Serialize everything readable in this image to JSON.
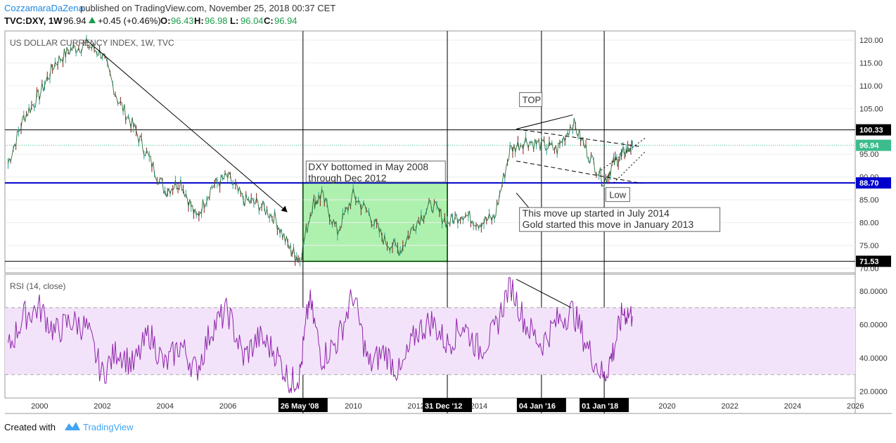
{
  "header": {
    "author": "CozzamaraDaZena",
    "published_text": " published on TradingView.com, November 25, 2018 00:37 CET",
    "symbol": "TVC:DXY, 1W",
    "last": "96.94",
    "change": "+0.45 (+0.46%)",
    "o_label": "O:",
    "o_value": "96.43",
    "h_label": "H:",
    "h_value": "96.98",
    "l_label": "L:",
    "l_value": "96.04",
    "c_label": "C:",
    "c_value": "96.94"
  },
  "footer": {
    "created_with": "Created with",
    "brand": "TradingView"
  },
  "colors": {
    "up": "#26a69a",
    "down": "#ef5350",
    "candle": "#8b1a1a",
    "support": "#0000cc",
    "rsi": "#8e24aa",
    "rsi_band": "#f3e3fa",
    "green_zone": "#93ec93",
    "last_price": "#3cbc8c",
    "accent_blue": "#1e88e5"
  },
  "chart_data": [
    {
      "type": "line",
      "title": "US DOLLAR CURRENCY INDEX, 1W, TVC",
      "x": [
        1999,
        1999.5,
        2000,
        2000.5,
        2001,
        2001.5,
        2002,
        2002.5,
        2003,
        2003.5,
        2004,
        2004.5,
        2005,
        2005.5,
        2006,
        2006.5,
        2007,
        2007.5,
        2008,
        2008.3,
        2008.7,
        2009,
        2009.5,
        2010,
        2010.5,
        2011,
        2011.5,
        2012,
        2012.5,
        2013,
        2013.5,
        2014,
        2014.5,
        2015,
        2015.5,
        2016,
        2016.5,
        2017,
        2017.5,
        2018,
        2018.3,
        2018.6,
        2018.9
      ],
      "values": [
        93,
        103,
        108,
        115,
        118,
        119,
        117,
        107,
        101,
        94,
        87,
        89,
        81,
        88,
        90,
        85,
        84,
        81,
        74,
        72,
        84,
        86,
        78,
        86,
        82,
        76,
        74,
        80,
        84,
        80,
        82,
        80,
        81,
        96,
        98,
        97,
        96,
        102,
        95,
        89,
        93,
        95,
        96.94
      ],
      "ylim": [
        69,
        122
      ],
      "xlim": [
        1998.9,
        2026
      ],
      "yticks": [
        "70.00",
        "75.00",
        "80.00",
        "85.00",
        "90.00",
        "95.00",
        "100.00",
        "105.00",
        "110.00",
        "115.00",
        "120.00"
      ],
      "xticks": [
        "2000",
        "2002",
        "2004",
        "2006",
        "2010",
        "2012",
        "2014",
        "2020",
        "2022",
        "2024",
        "2026"
      ],
      "date_markers": [
        {
          "label": "26 May '08",
          "x": 2008.4
        },
        {
          "label": "31 Dec '12",
          "x": 2013.0
        },
        {
          "label": "04 Jan '16",
          "x": 2016.0
        },
        {
          "label": "01 Jan '18",
          "x": 2018.0
        }
      ],
      "price_labels": [
        {
          "label": "100.33",
          "value": 100.33
        },
        {
          "label": "96.94",
          "value": 96.94
        },
        {
          "label": "88.70",
          "value": 88.7
        },
        {
          "label": "71.53",
          "value": 71.53
        }
      ],
      "annotations": [
        {
          "text": "DXY bottomed in May 2008\nthrough Dec 2012"
        },
        {
          "text": "TOP"
        },
        {
          "text": "Low"
        },
        {
          "text": "This move up started in July 2014\nGold started this move in January 2013"
        }
      ],
      "grid": true
    },
    {
      "type": "line",
      "title": "RSI (14, close)",
      "x": [
        1999,
        1999.5,
        2000,
        2000.5,
        2001,
        2001.5,
        2002,
        2002.5,
        2003,
        2003.5,
        2004,
        2004.5,
        2005,
        2005.5,
        2006,
        2006.5,
        2007,
        2007.5,
        2008,
        2008.3,
        2008.6,
        2009,
        2009.5,
        2010,
        2010.5,
        2011,
        2011.5,
        2012,
        2012.5,
        2013,
        2013.5,
        2014,
        2014.5,
        2015,
        2015.5,
        2016,
        2016.5,
        2017,
        2017.5,
        2018,
        2018.3,
        2018.6,
        2018.9
      ],
      "values": [
        45,
        65,
        70,
        55,
        62,
        58,
        30,
        45,
        35,
        55,
        35,
        48,
        32,
        58,
        68,
        40,
        52,
        44,
        25,
        30,
        75,
        40,
        50,
        78,
        35,
        44,
        30,
        55,
        62,
        48,
        60,
        45,
        55,
        85,
        60,
        48,
        62,
        68,
        45,
        28,
        45,
        68,
        65
      ],
      "ylim": [
        16,
        90
      ],
      "yticks": [
        "20.0000",
        "40.0000",
        "60.0000",
        "80.0000"
      ],
      "band": [
        30,
        70
      ]
    }
  ]
}
